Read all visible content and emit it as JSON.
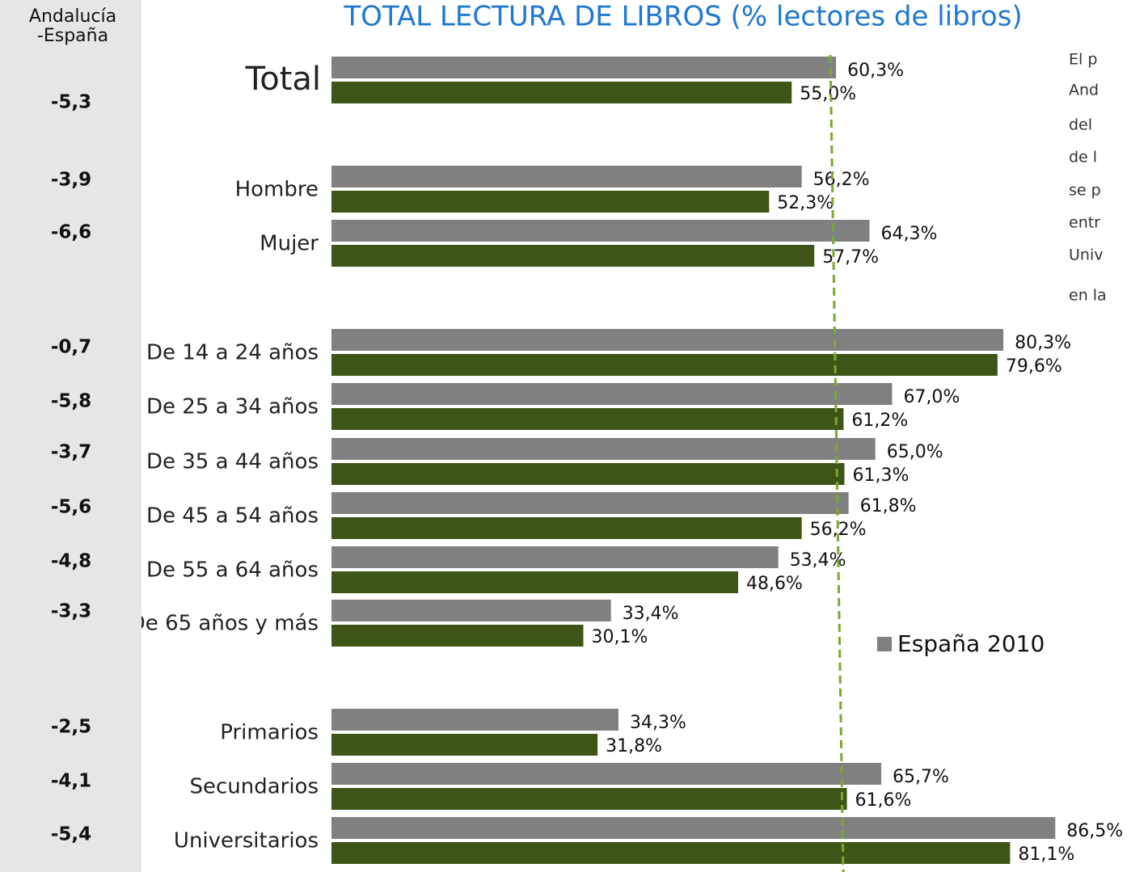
{
  "chart_data": {
    "type": "bar",
    "orientation": "horizontal",
    "title": "TOTAL LECTURA DE LIBROS (% lectores de libros)",
    "categories": [
      "Total",
      "Hombre",
      "Mujer",
      "De 14 a 24 años",
      "De 25 a 34 años",
      "De 35 a 44 años",
      "De 45 a 54 años",
      "De 55 a 64 años",
      "De 65 años y más",
      "Primarios",
      "Secundarios",
      "Universitarios"
    ],
    "series": [
      {
        "name": "España 2010",
        "color": "#808080",
        "values": [
          60.3,
          56.2,
          64.3,
          80.3,
          67.0,
          65.0,
          61.8,
          53.4,
          33.4,
          34.3,
          65.7,
          86.5
        ],
        "value_labels": [
          "60,3%",
          "56,2%",
          "64,3%",
          "80,3%",
          "67,0%",
          "65,0%",
          "61,8%",
          "53,4%",
          "33,4%",
          "34,3%",
          "65,7%",
          "86,5%"
        ]
      },
      {
        "color": "#3f5518",
        "values": [
          55.0,
          52.3,
          57.7,
          79.6,
          61.2,
          61.3,
          56.2,
          48.6,
          30.1,
          31.8,
          61.6,
          81.1
        ],
        "value_labels": [
          "55,0%",
          "52,3%",
          "57,7%",
          "79,6%",
          "61,2%",
          "61,3%",
          "56,2%",
          "48,6%",
          "30,1%",
          "31,8%",
          "61,6%",
          "81,1%"
        ]
      }
    ],
    "difference_header": [
      "Andalucía",
      "-España"
    ],
    "differences": [
      "-5,3",
      "-3,9",
      "-6,6",
      "-0,7",
      "-5,8",
      "-3,7",
      "-5,6",
      "-4,8",
      "-3,3",
      "-2,5",
      "-4,1",
      "-5,4"
    ],
    "side_text": [
      "El p",
      "And",
      "del",
      "de l",
      "se p",
      "entr",
      "Univ",
      "en la"
    ],
    "legend": "bottom-right"
  }
}
